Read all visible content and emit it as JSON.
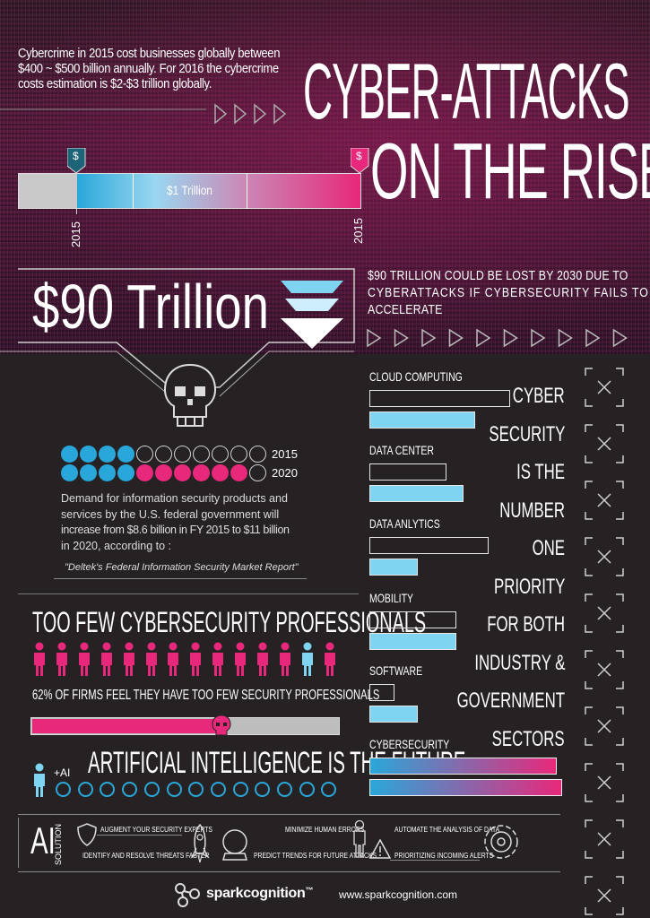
{
  "hero": {
    "intro": "Cybercrime in 2015 cost businesses globally between $400 ~ $500 billion annually. For 2016 the cybercrime costs estimation is $2-$3 trillion globally.",
    "intro_line1": "Cybercrime in 2015 cost businesses globally between",
    "intro_line2": "$400 ~ $500 billion annually. For 2016 the cybercrime",
    "intro_line3": "costs estimation is $2-$3 trillion globally.",
    "title_line1": "CYBER-ATTACKS",
    "title_line2": "ON THE RISE",
    "bar_label": "$1 Trillion",
    "marker_symbol": "$",
    "year_left": "2015",
    "year_right": "2015"
  },
  "ninety": {
    "big": "$90 Trillion",
    "desc_line1": "$90 TRILLION COULD BE LOST BY 2030 DUE TO",
    "desc_line2": "CYBERATTACKS IF CYBERSECURITY FAILS TO",
    "desc_line3": "ACCELERATE"
  },
  "demand": {
    "year_a": "2015",
    "year_b": "2020",
    "filled_2015": 4,
    "filled_2020": 10,
    "total_dots": 11,
    "text_line1": "Demand for information security products and",
    "text_line2": "services by the U.S. federal government will",
    "text_line3": "increase from $8.6 billion in FY 2015 to $11 billion",
    "text_line4": "in 2020, according to :",
    "source": "\"Deltek's Federal Information Security Market Report\""
  },
  "professionals": {
    "title": "TOO FEW CYBERSECURITY PROFESSIONALS",
    "stat": "62% OF FIRMS FEEL THEY HAVE TOO FEW SECURITY PROFESSIONALS",
    "progress": 0.62
  },
  "ai": {
    "title": "ARTIFICIAL INTELLIGENCE IS THE FUTURE",
    "plus_ai": "+AI",
    "solution_big": "AI",
    "solution_small": "SOLUTION",
    "items": {
      "augment": "AUGMENT YOUR SECURITY EXPERTS",
      "identify": "IDENTIFY AND RESOLVE THREATS FASTER",
      "minimize": "MINIMIZE HUMAN ERRORS",
      "predict": "PREDICT TRENDS FOR FUTURE ATTACKS",
      "automate": "AUTOMATE THE ANALYSIS OF DATA",
      "prioritize": "PRIORITIZING INCOMING ALERTS"
    }
  },
  "sectors": {
    "items": [
      {
        "label": "CLOUD COMPUTING",
        "a": 0.73,
        "b": 0.55
      },
      {
        "label": "DATA CENTER",
        "a": 0.4,
        "b": 0.49
      },
      {
        "label": "DATA ANLYTICS",
        "a": 0.62,
        "b": 0.25
      },
      {
        "label": "MOBILITY",
        "a": 0.45,
        "b": 0.45
      },
      {
        "label": "SOFTWARE",
        "a": 0.13,
        "b": 0.25
      },
      {
        "label": "CYBERSECURITY",
        "a": 0.97,
        "b": 1.0
      }
    ],
    "statement": [
      "CYBER",
      "SECURITY",
      "IS THE",
      "NUMBER",
      "ONE",
      "PRIORITY",
      "FOR BOTH",
      "INDUSTRY &",
      "GOVERNMENT",
      "SECTORS"
    ]
  },
  "footer": {
    "brand": "sparkcognition",
    "tm": "™",
    "url": "www.sparkcognition.com"
  },
  "colors": {
    "pink": "#e8287a",
    "blue": "#7fd4f2",
    "teal": "#1f6f86",
    "grey": "#c8c8c8"
  }
}
